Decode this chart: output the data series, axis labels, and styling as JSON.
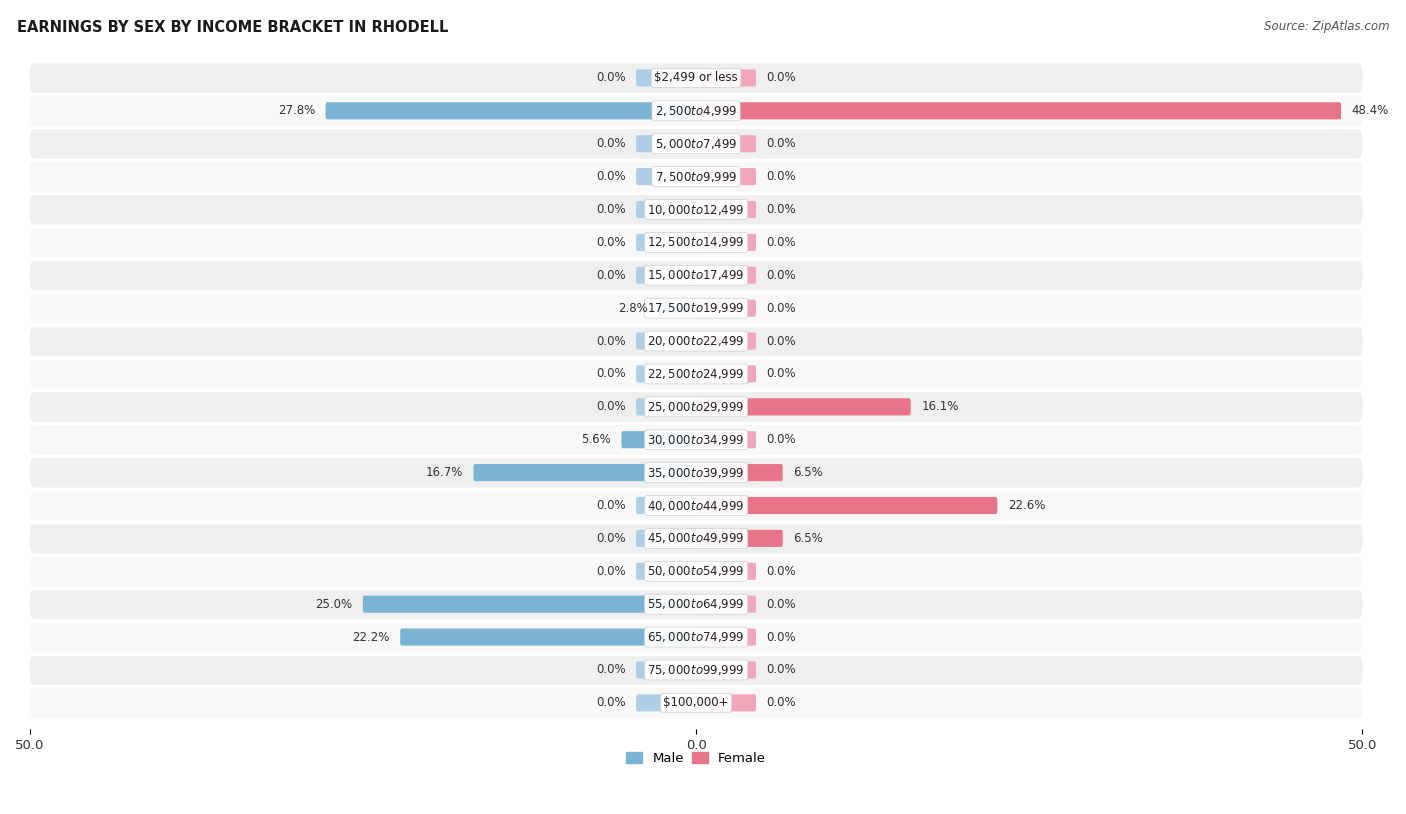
{
  "title": "EARNINGS BY SEX BY INCOME BRACKET IN RHODELL",
  "source": "Source: ZipAtlas.com",
  "categories": [
    "$2,499 or less",
    "$2,500 to $4,999",
    "$5,000 to $7,499",
    "$7,500 to $9,999",
    "$10,000 to $12,499",
    "$12,500 to $14,999",
    "$15,000 to $17,499",
    "$17,500 to $19,999",
    "$20,000 to $22,499",
    "$22,500 to $24,999",
    "$25,000 to $29,999",
    "$30,000 to $34,999",
    "$35,000 to $39,999",
    "$40,000 to $44,999",
    "$45,000 to $49,999",
    "$50,000 to $54,999",
    "$55,000 to $64,999",
    "$65,000 to $74,999",
    "$75,000 to $99,999",
    "$100,000+"
  ],
  "male_values": [
    0.0,
    27.8,
    0.0,
    0.0,
    0.0,
    0.0,
    0.0,
    2.8,
    0.0,
    0.0,
    0.0,
    5.6,
    16.7,
    0.0,
    0.0,
    0.0,
    25.0,
    22.2,
    0.0,
    0.0
  ],
  "female_values": [
    0.0,
    48.4,
    0.0,
    0.0,
    0.0,
    0.0,
    0.0,
    0.0,
    0.0,
    0.0,
    16.1,
    0.0,
    6.5,
    22.6,
    6.5,
    0.0,
    0.0,
    0.0,
    0.0,
    0.0
  ],
  "male_color": "#7ab3d4",
  "male_color_light": "#aecfe6",
  "female_color": "#e8748a",
  "female_color_light": "#f0a8b8",
  "xlim": 50.0,
  "stub_size": 4.5,
  "bar_height": 0.52,
  "row_bg_even": "#efefef",
  "row_bg_odd": "#f8f8f8",
  "label_fontsize": 8.5,
  "title_fontsize": 10.5,
  "source_fontsize": 8.5,
  "tick_fontsize": 9.5,
  "legend_fontsize": 9.5
}
